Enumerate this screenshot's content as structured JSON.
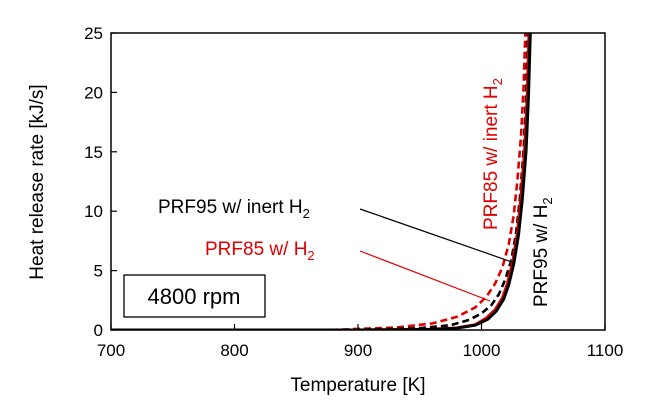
{
  "chart_data": {
    "type": "line",
    "title": "",
    "xlabel": "Temperature [K]",
    "ylabel": "Heat release rate [kJ/s]",
    "xlim": [
      700,
      1100
    ],
    "ylim": [
      0,
      25
    ],
    "xticks": [
      700,
      800,
      900,
      1000,
      1100
    ],
    "yticks": [
      0,
      5,
      10,
      15,
      20,
      25
    ],
    "grid": false,
    "legend": "none",
    "box_label": "4800 rpm",
    "series": [
      {
        "name": "PRF95 w/ H2",
        "color": "#000000",
        "dash": "solid",
        "x": [
          700,
          900,
          960,
          980,
          995,
          1005,
          1012,
          1018,
          1022,
          1026,
          1030,
          1033,
          1036,
          1038,
          1039.5
        ],
        "y": [
          0,
          0,
          0.05,
          0.15,
          0.4,
          0.9,
          1.6,
          2.6,
          3.8,
          5.5,
          8.0,
          11.0,
          15.0,
          19.5,
          25
        ]
      },
      {
        "name": "PRF85 w/ H2",
        "color": "#e00000",
        "dash": "solid",
        "x": [
          700,
          900,
          960,
          980,
          995,
          1004,
          1011,
          1017,
          1021,
          1025,
          1029,
          1032,
          1035,
          1037,
          1038.5
        ],
        "y": [
          0,
          0,
          0.06,
          0.18,
          0.45,
          1.0,
          1.7,
          2.7,
          3.9,
          5.6,
          8.1,
          11.2,
          15.2,
          19.6,
          25
        ]
      },
      {
        "name": "PRF95 w/ inert H2",
        "color": "#000000",
        "dash": "dashed",
        "x": [
          700,
          900,
          950,
          975,
          990,
          1000,
          1008,
          1014,
          1019,
          1024,
          1028,
          1031,
          1034,
          1036,
          1037.5
        ],
        "y": [
          0,
          0.02,
          0.15,
          0.4,
          0.85,
          1.4,
          2.1,
          3.0,
          4.2,
          5.8,
          8.2,
          11.0,
          15.0,
          19.5,
          25
        ]
      },
      {
        "name": "PRF85 w/ inert H2",
        "color": "#e00000",
        "dash": "dashed",
        "x": [
          700,
          880,
          930,
          960,
          980,
          995,
          1004,
          1011,
          1017,
          1022,
          1026,
          1029,
          1032,
          1034,
          1035.5
        ],
        "y": [
          0,
          0.02,
          0.2,
          0.55,
          1.1,
          1.9,
          2.8,
          3.9,
          5.3,
          7.2,
          9.6,
          12.5,
          16.3,
          20.3,
          25
        ]
      }
    ],
    "annotations": [
      {
        "name": "PRF95 w/ inert H2",
        "text": "PRF95 w/ inert H",
        "sub": "2",
        "color": "#000000"
      },
      {
        "name": "PRF85 w/ H2",
        "text": "PRF85 w/ H",
        "sub": "2",
        "color": "#e00000"
      },
      {
        "name": "PRF85 w/ inert H2",
        "text": "PRF85 w/ inert H",
        "sub": "2",
        "color": "#e00000"
      },
      {
        "name": "PRF95 w/ H2",
        "text": "PRF95 w/ H",
        "sub": "2",
        "color": "#000000"
      }
    ]
  }
}
